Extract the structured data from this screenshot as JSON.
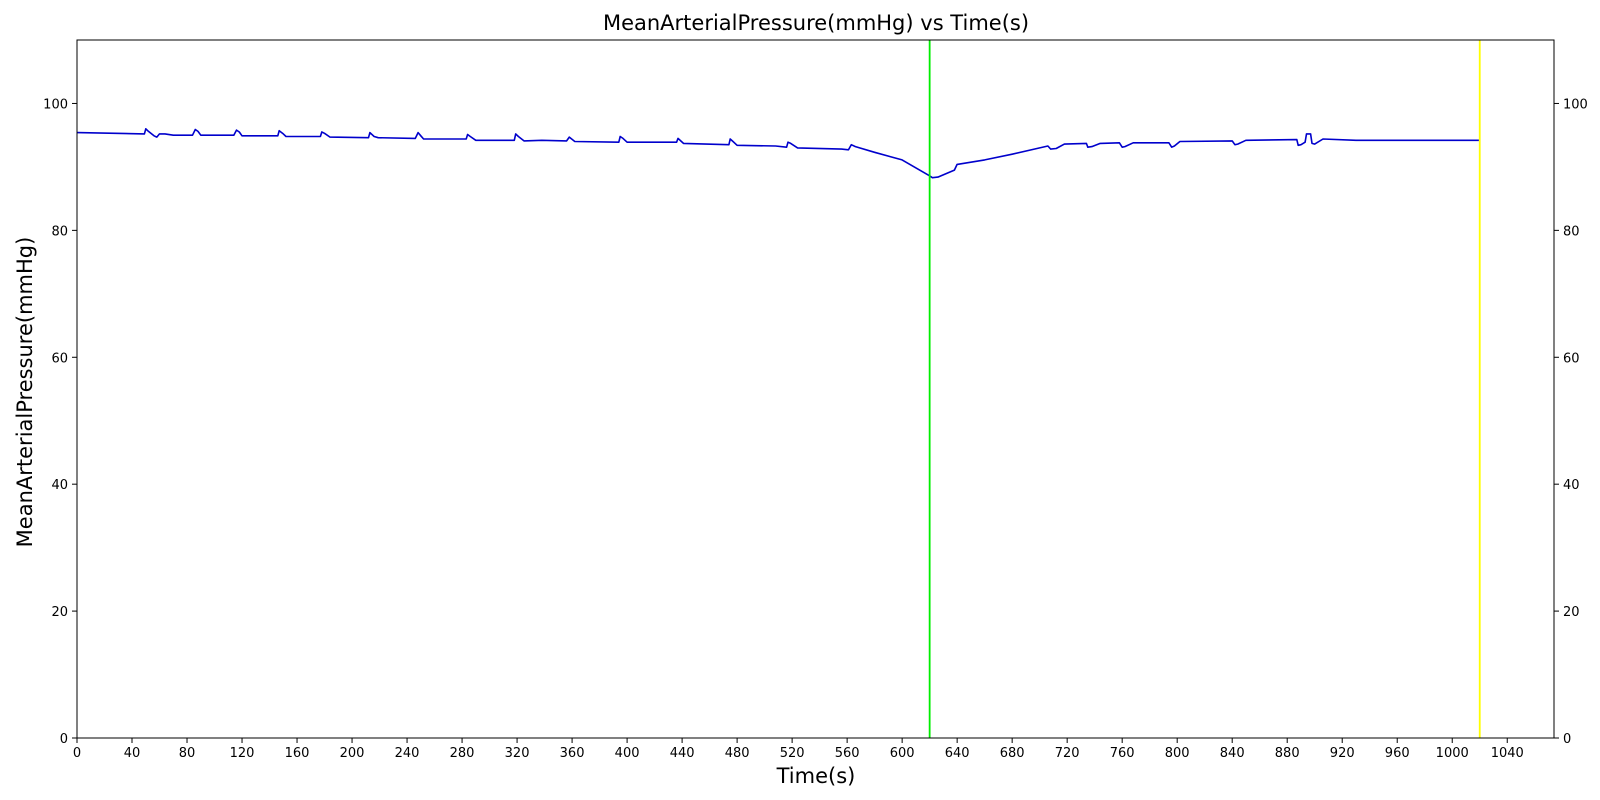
{
  "chart_data": {
    "type": "line",
    "title": "MeanArterialPressure(mmHg) vs Time(s)",
    "xlabel": "Time(s)",
    "ylabel": "MeanArterialPressure(mmHg)",
    "xlim": [
      0,
      1074
    ],
    "ylim": [
      0,
      110
    ],
    "x_ticks": [
      0,
      40,
      80,
      120,
      160,
      200,
      240,
      280,
      320,
      360,
      400,
      440,
      480,
      520,
      560,
      600,
      640,
      680,
      720,
      760,
      800,
      840,
      880,
      920,
      960,
      1000,
      1040
    ],
    "y_ticks": [
      0,
      20,
      40,
      60,
      80,
      100
    ],
    "right_axis_ticks": true,
    "grid": false,
    "legend": "none",
    "series": [
      {
        "color": "#0000cc",
        "points": [
          [
            0,
            95.4
          ],
          [
            49,
            95.2
          ],
          [
            50,
            96.0
          ],
          [
            52,
            95.6
          ],
          [
            56,
            94.9
          ],
          [
            58,
            94.7
          ],
          [
            60,
            95.2
          ],
          [
            64,
            95.2
          ],
          [
            70,
            95.0
          ],
          [
            84,
            95.0
          ],
          [
            86,
            95.9
          ],
          [
            88,
            95.6
          ],
          [
            90,
            95.0
          ],
          [
            114,
            95.0
          ],
          [
            116,
            95.8
          ],
          [
            118,
            95.5
          ],
          [
            120,
            94.9
          ],
          [
            146,
            94.9
          ],
          [
            147,
            95.7
          ],
          [
            150,
            95.2
          ],
          [
            152,
            94.8
          ],
          [
            177,
            94.8
          ],
          [
            178,
            95.5
          ],
          [
            180,
            95.3
          ],
          [
            184,
            94.7
          ],
          [
            212,
            94.6
          ],
          [
            213,
            95.4
          ],
          [
            216,
            94.8
          ],
          [
            219,
            94.6
          ],
          [
            246,
            94.5
          ],
          [
            248,
            95.4
          ],
          [
            250,
            94.9
          ],
          [
            252,
            94.4
          ],
          [
            283,
            94.4
          ],
          [
            284,
            95.1
          ],
          [
            286,
            94.8
          ],
          [
            290,
            94.2
          ],
          [
            318,
            94.2
          ],
          [
            319,
            95.2
          ],
          [
            321,
            94.8
          ],
          [
            325,
            94.1
          ],
          [
            338,
            94.2
          ],
          [
            356,
            94.1
          ],
          [
            358,
            94.7
          ],
          [
            362,
            94.0
          ],
          [
            394,
            93.9
          ],
          [
            395,
            94.8
          ],
          [
            397,
            94.5
          ],
          [
            400,
            93.9
          ],
          [
            436,
            93.9
          ],
          [
            437,
            94.5
          ],
          [
            441,
            93.7
          ],
          [
            474,
            93.5
          ],
          [
            475,
            94.4
          ],
          [
            477,
            94.0
          ],
          [
            480,
            93.4
          ],
          [
            508,
            93.3
          ],
          [
            516,
            93.1
          ],
          [
            517,
            93.9
          ],
          [
            519,
            93.7
          ],
          [
            524,
            93.0
          ],
          [
            556,
            92.8
          ],
          [
            561,
            92.7
          ],
          [
            563,
            93.5
          ],
          [
            566,
            93.2
          ],
          [
            580,
            92.3
          ],
          [
            600,
            91.1
          ],
          [
            620,
            88.6
          ],
          [
            622,
            88.3
          ],
          [
            626,
            88.4
          ],
          [
            638,
            89.5
          ],
          [
            640,
            90.4
          ],
          [
            660,
            91.1
          ],
          [
            680,
            92.0
          ],
          [
            700,
            93.0
          ],
          [
            706,
            93.3
          ],
          [
            708,
            92.8
          ],
          [
            712,
            92.9
          ],
          [
            718,
            93.6
          ],
          [
            734,
            93.7
          ],
          [
            735,
            93.1
          ],
          [
            738,
            93.2
          ],
          [
            744,
            93.7
          ],
          [
            758,
            93.8
          ],
          [
            760,
            93.1
          ],
          [
            762,
            93.2
          ],
          [
            768,
            93.8
          ],
          [
            794,
            93.8
          ],
          [
            796,
            93.1
          ],
          [
            798,
            93.3
          ],
          [
            802,
            94.0
          ],
          [
            840,
            94.1
          ],
          [
            842,
            93.5
          ],
          [
            844,
            93.6
          ],
          [
            850,
            94.2
          ],
          [
            887,
            94.3
          ],
          [
            888,
            93.4
          ],
          [
            890,
            93.5
          ],
          [
            893,
            93.9
          ],
          [
            894,
            95.2
          ],
          [
            897,
            95.2
          ],
          [
            898,
            93.7
          ],
          [
            900,
            93.6
          ],
          [
            906,
            94.4
          ],
          [
            930,
            94.2
          ],
          [
            1020,
            94.2
          ]
        ]
      }
    ],
    "vertical_lines": [
      {
        "x": 620,
        "color": "#00ee00"
      },
      {
        "x": 1020,
        "color": "#ffff00"
      }
    ]
  }
}
